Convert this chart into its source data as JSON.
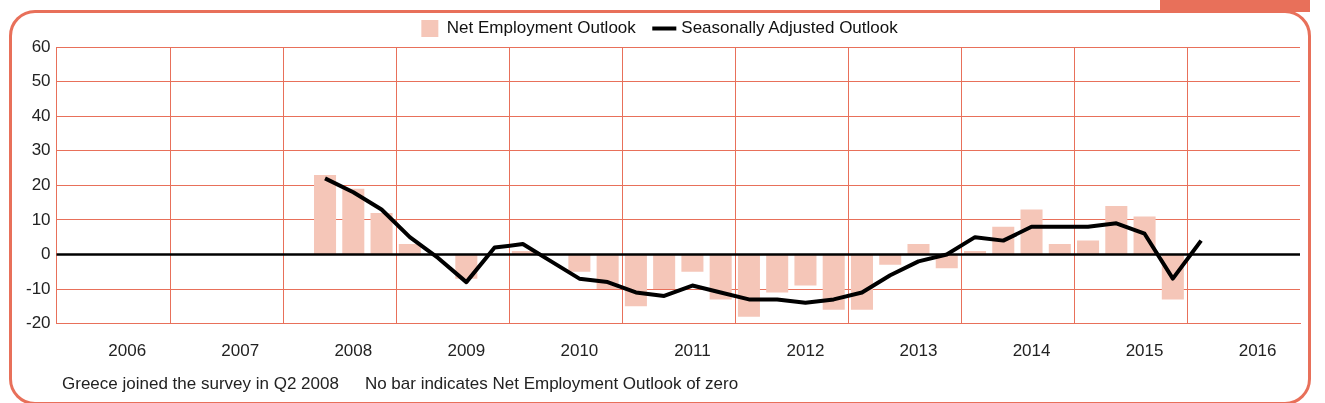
{
  "chart_data": {
    "type": "bar",
    "categories": [
      null,
      null,
      "2006",
      null,
      null,
      null,
      "2007",
      null,
      null,
      null,
      "2008",
      null,
      null,
      null,
      "2009",
      null,
      null,
      null,
      "2010",
      null,
      null,
      null,
      "2011",
      null,
      null,
      null,
      "2012",
      null,
      null,
      null,
      "2013",
      null,
      null,
      null,
      "2014",
      null,
      null,
      null,
      "2015",
      null,
      null,
      null,
      "2016",
      null
    ],
    "series": [
      {
        "name": "Net Employment Outlook",
        "type": "bar",
        "color": "#f5c6b8",
        "values": [
          null,
          null,
          null,
          null,
          null,
          null,
          null,
          null,
          null,
          23,
          19,
          12,
          3,
          0,
          -7,
          0,
          1,
          0,
          -5,
          -10,
          -15,
          -10,
          -5,
          -13,
          -18,
          -11,
          -9,
          -16,
          -16,
          -3,
          3,
          -4,
          1,
          8,
          13,
          3,
          4,
          14,
          11,
          -13,
          0,
          null,
          null,
          null
        ]
      },
      {
        "name": "Seasonally Adjusted Outlook",
        "type": "line",
        "color": "#000000",
        "values": [
          null,
          null,
          null,
          null,
          null,
          null,
          null,
          null,
          null,
          22,
          18,
          13,
          5,
          -1,
          -8,
          2,
          3,
          -2,
          -7,
          -8,
          -11,
          -12,
          -9,
          -11,
          -13,
          -13,
          -14,
          -13,
          -11,
          -6,
          -2,
          0,
          5,
          4,
          8,
          8,
          8,
          9,
          6,
          -7,
          4,
          null,
          null,
          null
        ]
      }
    ],
    "ylim": [
      -20,
      60
    ],
    "yticks": [
      -20,
      -10,
      0,
      10,
      20,
      30,
      40,
      50,
      60
    ],
    "grid": true,
    "legend": "top",
    "ref_lines": [
      {
        "axis": "y",
        "value": 0,
        "color": "#000000"
      }
    ],
    "annotations": [
      "Greece joined the survey in Q2 2008",
      "No bar indicates Net Employment Outlook of zero"
    ]
  }
}
